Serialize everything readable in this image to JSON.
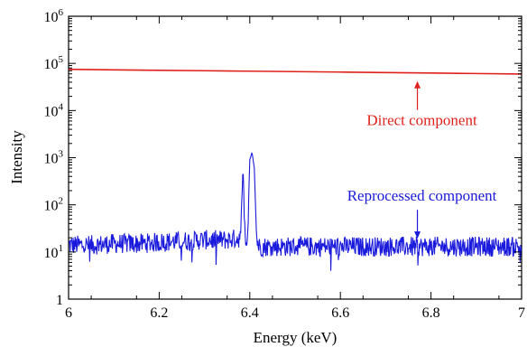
{
  "chart_data": {
    "type": "line",
    "xlabel": "Energy (keV)",
    "ylabel": "Intensity",
    "xlim": [
      6,
      7
    ],
    "ylim": [
      1,
      1000000
    ],
    "yscale": "log",
    "grid": false,
    "x_ticks": [
      {
        "value": 6.0,
        "label": "6"
      },
      {
        "value": 6.2,
        "label": "6.2"
      },
      {
        "value": 6.4,
        "label": "6.4"
      },
      {
        "value": 6.6,
        "label": "6.6"
      },
      {
        "value": 6.8,
        "label": "6.8"
      },
      {
        "value": 7.0,
        "label": "7"
      }
    ],
    "y_ticks": [
      {
        "value": 1,
        "base": "1",
        "exp": ""
      },
      {
        "value": 10,
        "base": "10",
        "exp": "1"
      },
      {
        "value": 100,
        "base": "10",
        "exp": "2"
      },
      {
        "value": 1000,
        "base": "10",
        "exp": "3"
      },
      {
        "value": 10000,
        "base": "10",
        "exp": "4"
      },
      {
        "value": 100000,
        "base": "10",
        "exp": "5"
      },
      {
        "value": 1000000,
        "base": "10",
        "exp": "6"
      }
    ],
    "series": [
      {
        "name": "Direct component",
        "color": "#e0201b",
        "x": [
          6.0,
          6.1,
          6.2,
          6.3,
          6.4,
          6.5,
          6.6,
          6.7,
          6.8,
          6.9,
          7.0
        ],
        "y": [
          75000,
          73000,
          71500,
          70000,
          68500,
          67000,
          65500,
          64000,
          62500,
          61000,
          59500
        ]
      },
      {
        "name": "Reprocessed component",
        "color": "#1a1adc",
        "x": [
          6.0,
          6.05,
          6.1,
          6.15,
          6.2,
          6.25,
          6.3,
          6.35,
          6.38,
          6.385,
          6.39,
          6.395,
          6.4,
          6.405,
          6.41,
          6.415,
          6.42,
          6.45,
          6.5,
          6.55,
          6.6,
          6.65,
          6.7,
          6.75,
          6.8,
          6.85,
          6.9,
          6.95,
          7.0
        ],
        "y": [
          14,
          14,
          15,
          15,
          16,
          17,
          18,
          18,
          20,
          650,
          20,
          20,
          900,
          1300,
          600,
          20,
          13,
          13,
          13,
          13,
          13,
          13,
          13,
          13,
          13,
          13,
          13,
          13,
          13
        ]
      }
    ],
    "annotations": [
      {
        "text": "Direct component",
        "color": "#e0201b",
        "arrow_x": 6.77,
        "arrow_y": 60000
      },
      {
        "text": "Reprocessed component",
        "color": "#1a1adc",
        "arrow_x": 6.77,
        "arrow_y": 16
      }
    ]
  }
}
